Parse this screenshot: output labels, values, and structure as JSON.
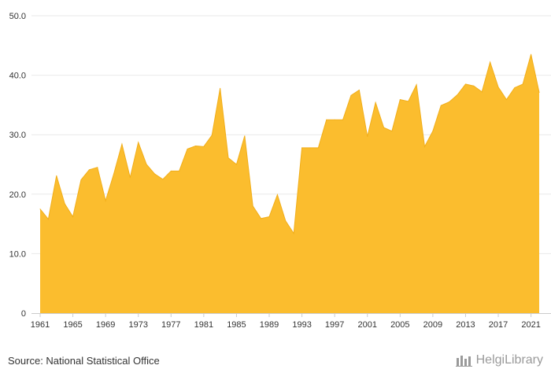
{
  "source_label": "Source: National Statistical Office",
  "logo_text": "HelgiLibrary",
  "colors": {
    "fill": "#FBBD2E",
    "stroke": "#F1AE1A",
    "grid": "#e9e9e9",
    "text": "#333333"
  },
  "chart_data": {
    "type": "area",
    "title": "",
    "xlabel": "",
    "ylabel": "",
    "ylim": [
      0,
      50
    ],
    "yticks": [
      0,
      10,
      20,
      30,
      40,
      50
    ],
    "ytick_labels": [
      "0",
      "10.0",
      "20.0",
      "30.0",
      "40.0",
      "50.0"
    ],
    "xticks": [
      1961,
      1965,
      1969,
      1973,
      1977,
      1981,
      1985,
      1989,
      1993,
      1997,
      2001,
      2005,
      2009,
      2013,
      2017,
      2021
    ],
    "grid": "horizontal",
    "x": [
      1961,
      1962,
      1963,
      1964,
      1965,
      1966,
      1967,
      1968,
      1969,
      1970,
      1971,
      1972,
      1973,
      1974,
      1975,
      1976,
      1977,
      1978,
      1979,
      1980,
      1981,
      1982,
      1983,
      1984,
      1985,
      1986,
      1987,
      1988,
      1989,
      1990,
      1991,
      1992,
      1993,
      1994,
      1995,
      1996,
      1997,
      1998,
      1999,
      2000,
      2001,
      2002,
      2003,
      2004,
      2005,
      2006,
      2007,
      2008,
      2009,
      2010,
      2011,
      2012,
      2013,
      2014,
      2015,
      2016,
      2017,
      2018,
      2019,
      2020,
      2021,
      2022
    ],
    "values": [
      17.5,
      15.8,
      23.1,
      18.4,
      16.2,
      22.4,
      24.1,
      24.5,
      18.9,
      23.4,
      28.4,
      22.8,
      28.7,
      25.0,
      23.4,
      22.5,
      23.9,
      23.9,
      27.6,
      28.1,
      28.0,
      29.9,
      37.8,
      26.1,
      25.0,
      29.8,
      18.0,
      15.9,
      16.2,
      19.9,
      15.5,
      13.4,
      27.8,
      27.8,
      27.8,
      32.5,
      32.5,
      32.5,
      36.6,
      37.5,
      29.7,
      35.4,
      31.2,
      30.6,
      35.9,
      35.6,
      38.4,
      28.0,
      30.6,
      34.9,
      35.5,
      36.7,
      38.5,
      38.2,
      37.2,
      42.2,
      38.0,
      35.9,
      37.9,
      38.5,
      43.5,
      37.1
    ]
  }
}
